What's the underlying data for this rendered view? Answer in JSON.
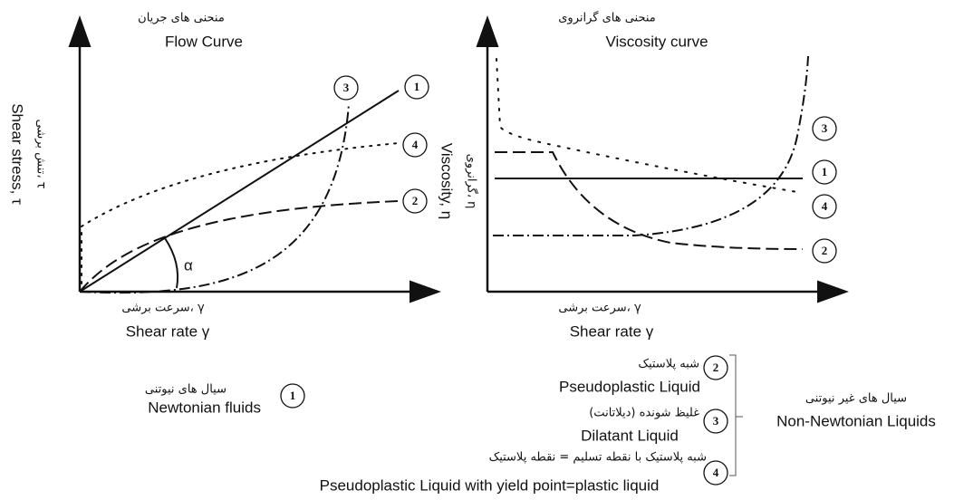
{
  "flow_curve": {
    "title_fa": "منحنی های جریان",
    "title_en": "Flow Curve",
    "y_label_fa": "تنش برشی، τ",
    "y_label_en": "Shear stress, τ",
    "x_label_fa": "سرعت برشی، γ",
    "x_label_en": "Shear rate γ",
    "angle": "α",
    "markers": [
      "1",
      "2",
      "3",
      "4"
    ]
  },
  "viscosity_curve": {
    "title_fa": "منحنی های گرانروی",
    "title_en": "Viscosity curve",
    "y_label_fa": "گرانروی، η",
    "y_label_en": "Viscosity, η",
    "x_label_fa": "سرعت برشی، γ",
    "x_label_en": "Shear rate γ",
    "markers": [
      "1",
      "2",
      "3",
      "4"
    ]
  },
  "legend": {
    "newtonian": {
      "number": "1",
      "fa": "سیال های نیوتنی",
      "en": "Newtonian fluids"
    },
    "non_newtonian": {
      "fa": "سیال های غیر نیوتنی",
      "en": "Non-Newtonian Liquids",
      "items": [
        {
          "number": "2",
          "fa": "شبه پلاستیک",
          "en": "Pseudoplastic Liquid"
        },
        {
          "number": "3",
          "fa": "غلیظ شونده (دیلاتانت)",
          "en": "Dilatant Liquid"
        },
        {
          "number": "4",
          "fa": "شبه پلاستیک با نقطه تسلیم = نقطه پلاستیک",
          "en": "Pseudoplastic Liquid with yield point=plastic liquid"
        }
      ]
    }
  }
}
